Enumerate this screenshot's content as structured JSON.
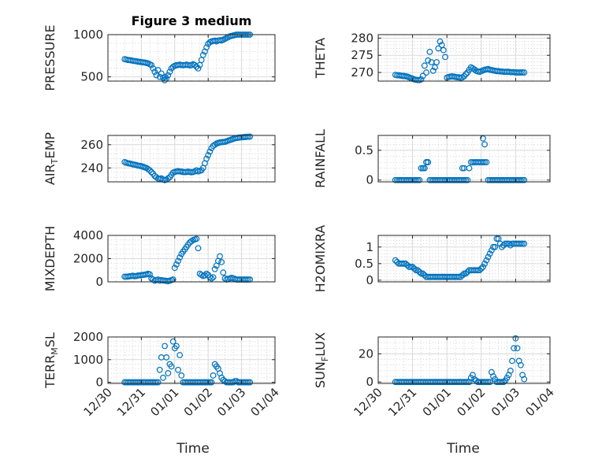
{
  "figure": {
    "title": "Figure 3 medium",
    "background": "#ffffff",
    "axes_color": "#262626",
    "marker_color": "#0072bd"
  },
  "chart_data": [
    {
      "type": "scatter",
      "ylabel": "PRESSURE",
      "title": "Figure 3 medium",
      "xlim": [
        0,
        5
      ],
      "ylim": [
        450,
        1000
      ],
      "yticks": [
        500,
        1000
      ],
      "yticklabels": [
        "500",
        "1000"
      ],
      "x": [
        0.5,
        0.55,
        0.6,
        0.65,
        0.7,
        0.75,
        0.8,
        0.85,
        0.9,
        0.95,
        1.0,
        1.05,
        1.1,
        1.15,
        1.2,
        1.25,
        1.3,
        1.35,
        1.4,
        1.45,
        1.5,
        1.55,
        1.6,
        1.65,
        1.7,
        1.72,
        1.75,
        1.8,
        1.85,
        1.9,
        1.95,
        2.0,
        2.05,
        2.1,
        2.15,
        2.2,
        2.25,
        2.3,
        2.35,
        2.4,
        2.45,
        2.5,
        2.55,
        2.6,
        2.65,
        2.7,
        2.75,
        2.8,
        2.85,
        2.9,
        2.95,
        3.0,
        3.05,
        3.1,
        3.15,
        3.2,
        3.25,
        3.3,
        3.35,
        3.4,
        3.45,
        3.5,
        3.55,
        3.6,
        3.65,
        3.7,
        3.75,
        3.8,
        3.85,
        3.9,
        3.95,
        4.0,
        4.05,
        4.1,
        4.15,
        4.2,
        4.25
      ],
      "y": [
        710,
        705,
        700,
        698,
        695,
        690,
        688,
        685,
        680,
        678,
        675,
        672,
        670,
        665,
        660,
        650,
        640,
        600,
        560,
        520,
        580,
        500,
        540,
        490,
        460,
        500,
        480,
        520,
        560,
        600,
        620,
        630,
        640,
        640,
        645,
        640,
        638,
        640,
        645,
        640,
        635,
        640,
        650,
        640,
        620,
        600,
        640,
        700,
        760,
        800,
        850,
        890,
        910,
        920,
        925,
        930,
        920,
        930,
        935,
        930,
        940,
        950,
        960,
        970,
        980,
        985,
        990,
        995,
        1000,
        1000,
        1000,
        1000,
        1000,
        1000,
        1000,
        1000,
        1000
      ]
    },
    {
      "type": "scatter",
      "ylabel": "THETA",
      "xlim": [
        0,
        5
      ],
      "ylim": [
        267.5,
        281
      ],
      "yticks": [
        270,
        275,
        280
      ],
      "yticklabels": [
        "270",
        "275",
        "280"
      ],
      "x": [
        0.5,
        0.55,
        0.6,
        0.65,
        0.7,
        0.75,
        0.8,
        0.85,
        0.9,
        0.95,
        1.0,
        1.05,
        1.1,
        1.15,
        1.2,
        1.25,
        1.3,
        1.35,
        1.4,
        1.45,
        1.5,
        1.55,
        1.6,
        1.65,
        1.7,
        1.75,
        1.8,
        1.85,
        1.9,
        1.95,
        2.0,
        2.05,
        2.1,
        2.15,
        2.2,
        2.25,
        2.3,
        2.35,
        2.4,
        2.45,
        2.5,
        2.55,
        2.6,
        2.65,
        2.7,
        2.75,
        2.8,
        2.85,
        2.9,
        2.95,
        3.0,
        3.05,
        3.1,
        3.15,
        3.2,
        3.25,
        3.3,
        3.35,
        3.4,
        3.45,
        3.5,
        3.55,
        3.6,
        3.65,
        3.7,
        3.75,
        3.8,
        3.85,
        3.9,
        3.95,
        4.0,
        4.05,
        4.1,
        4.15,
        4.2,
        4.25
      ],
      "y": [
        269.3,
        269.2,
        269.2,
        269.1,
        269.0,
        269.0,
        268.9,
        268.8,
        268.6,
        268.4,
        268.2,
        268.0,
        267.9,
        267.8,
        267.8,
        268.0,
        269.0,
        272.0,
        270.0,
        273.5,
        276.0,
        273.0,
        270.5,
        271.5,
        273.0,
        277.0,
        279.0,
        278.0,
        276.5,
        274.5,
        268.5,
        268.7,
        268.8,
        268.9,
        268.8,
        268.7,
        268.6,
        268.6,
        268.4,
        268.6,
        268.9,
        269.5,
        270.0,
        270.8,
        271.5,
        271.2,
        270.9,
        270.5,
        270.3,
        270.2,
        270.4,
        270.6,
        270.8,
        270.9,
        271.0,
        270.8,
        270.7,
        270.6,
        270.5,
        270.4,
        270.4,
        270.3,
        270.3,
        270.2,
        270.2,
        270.2,
        270.2,
        270.1,
        270.1,
        270.1,
        270.0,
        270.0,
        270.0,
        270.0,
        270.0,
        270.0
      ]
    },
    {
      "type": "scatter",
      "ylabel": "AIR_TEMP",
      "xlim": [
        0,
        5
      ],
      "ylim": [
        228,
        268
      ],
      "yticks": [
        240,
        260
      ],
      "yticklabels": [
        "240",
        "260"
      ],
      "x": [
        0.5,
        0.55,
        0.6,
        0.65,
        0.7,
        0.75,
        0.8,
        0.85,
        0.9,
        0.95,
        1.0,
        1.05,
        1.1,
        1.15,
        1.2,
        1.25,
        1.3,
        1.35,
        1.4,
        1.45,
        1.5,
        1.55,
        1.6,
        1.65,
        1.7,
        1.75,
        1.8,
        1.85,
        1.9,
        1.95,
        2.0,
        2.05,
        2.1,
        2.15,
        2.2,
        2.25,
        2.3,
        2.35,
        2.4,
        2.45,
        2.5,
        2.55,
        2.6,
        2.65,
        2.7,
        2.75,
        2.8,
        2.85,
        2.9,
        2.95,
        3.0,
        3.05,
        3.1,
        3.15,
        3.2,
        3.25,
        3.3,
        3.35,
        3.4,
        3.45,
        3.5,
        3.55,
        3.6,
        3.65,
        3.7,
        3.75,
        3.8,
        3.85,
        3.9,
        3.95,
        4.0,
        4.05,
        4.1,
        4.15,
        4.2,
        4.25
      ],
      "y": [
        245,
        244.5,
        244,
        243.8,
        243.5,
        243,
        242.8,
        242.5,
        242,
        241.8,
        241.5,
        241,
        240.5,
        240,
        239,
        238,
        236.5,
        235,
        233,
        232,
        231,
        230.5,
        231,
        230,
        229.5,
        230,
        231,
        232,
        234,
        236,
        236.5,
        237,
        237.2,
        237,
        236.8,
        236.5,
        236.4,
        236.5,
        236.8,
        236.5,
        236.2,
        236.5,
        237,
        238,
        237,
        237.5,
        238,
        240,
        244,
        248,
        251,
        254,
        257,
        259,
        260,
        261,
        261.5,
        262,
        262.2,
        262.3,
        262.5,
        263,
        263.5,
        264,
        264.5,
        265,
        265.5,
        265.8,
        266,
        266.2,
        266.3,
        266.5,
        266.6,
        266.8,
        266.9,
        267
      ]
    },
    {
      "type": "scatter",
      "ylabel": "RAINFALL",
      "xlim": [
        0,
        5
      ],
      "ylim": [
        -0.03,
        0.75
      ],
      "yticks": [
        0,
        0.5
      ],
      "yticklabels": [
        "0",
        "0.5"
      ],
      "x": [
        0.5,
        0.55,
        0.6,
        0.65,
        0.7,
        0.75,
        0.8,
        0.85,
        0.9,
        0.95,
        1.0,
        1.05,
        1.1,
        1.15,
        1.2,
        1.25,
        1.3,
        1.35,
        1.4,
        1.45,
        1.5,
        1.55,
        1.6,
        1.65,
        1.7,
        1.75,
        1.8,
        1.85,
        1.9,
        1.95,
        2.0,
        2.05,
        2.1,
        2.15,
        2.2,
        2.25,
        2.3,
        2.35,
        2.4,
        2.45,
        2.5,
        2.55,
        2.6,
        2.65,
        2.7,
        2.75,
        2.8,
        2.85,
        2.9,
        2.95,
        3.0,
        3.05,
        3.1,
        3.15,
        3.2,
        3.25,
        3.3,
        3.35,
        3.4,
        3.45,
        3.5,
        3.55,
        3.6,
        3.65,
        3.7,
        3.75,
        3.8,
        3.85,
        3.9,
        3.95,
        4.0,
        4.05,
        4.1,
        4.15,
        4.2,
        4.25,
        1.3,
        1.35,
        1.4,
        1.45,
        2.45,
        2.5,
        3.05,
        3.1
      ],
      "y": [
        0,
        0,
        0,
        0,
        0,
        0,
        0,
        0,
        0,
        0,
        0,
        0,
        0,
        0,
        0,
        0.2,
        0.2,
        0.2,
        0.3,
        0.3,
        0,
        0,
        0,
        0,
        0,
        0,
        0,
        0,
        0,
        0,
        0,
        0,
        0,
        0,
        0,
        0,
        0,
        0,
        0,
        0,
        0,
        0,
        0,
        0.2,
        0.3,
        0.3,
        0.3,
        0.3,
        0.3,
        0.3,
        0.3,
        0.3,
        0.3,
        0.3,
        0,
        0,
        0,
        0,
        0,
        0,
        0,
        0,
        0,
        0,
        0,
        0,
        0,
        0,
        0,
        0,
        0,
        0,
        0,
        0,
        0,
        0,
        0.2,
        0.2,
        0.3,
        0.3,
        0.2,
        0.2,
        0.7,
        0.6
      ]
    },
    {
      "type": "scatter",
      "ylabel": "MIXDEPTH",
      "xlim": [
        0,
        5
      ],
      "ylim": [
        0,
        4000
      ],
      "yticks": [
        0,
        2000,
        4000
      ],
      "yticklabels": [
        "0",
        "2000",
        "4000"
      ],
      "x": [
        0.5,
        0.55,
        0.6,
        0.65,
        0.7,
        0.75,
        0.8,
        0.85,
        0.9,
        0.95,
        1.0,
        1.05,
        1.1,
        1.15,
        1.2,
        1.25,
        1.3,
        1.35,
        1.4,
        1.45,
        1.5,
        1.55,
        1.6,
        1.65,
        1.7,
        1.75,
        1.8,
        1.85,
        1.9,
        1.95,
        2.0,
        2.05,
        2.1,
        2.15,
        2.2,
        2.25,
        2.3,
        2.35,
        2.4,
        2.45,
        2.5,
        2.55,
        2.6,
        2.65,
        2.7,
        2.75,
        2.8,
        2.85,
        2.9,
        2.95,
        3.0,
        3.05,
        3.1,
        3.15,
        3.2,
        3.25,
        3.3,
        3.35,
        3.4,
        3.45,
        3.5,
        3.55,
        3.6,
        3.65,
        3.7,
        3.75,
        3.8,
        3.85,
        3.9,
        3.95,
        4.0,
        4.05,
        4.1,
        4.15,
        4.2,
        4.25
      ],
      "y": [
        450,
        440,
        460,
        480,
        500,
        520,
        480,
        500,
        550,
        560,
        580,
        600,
        620,
        650,
        700,
        650,
        300,
        200,
        100,
        150,
        200,
        100,
        150,
        120,
        100,
        80,
        50,
        100,
        150,
        200,
        1200,
        1500,
        1800,
        2100,
        2400,
        2600,
        2800,
        3000,
        3200,
        3400,
        3500,
        3600,
        3650,
        3700,
        2900,
        700,
        600,
        500,
        550,
        700,
        600,
        400,
        300,
        400,
        1100,
        1400,
        1800,
        2200,
        1700,
        800,
        300,
        200,
        250,
        300,
        350,
        300,
        250,
        200,
        200,
        200,
        200,
        200,
        200,
        200,
        200,
        200
      ]
    },
    {
      "type": "scatter",
      "ylabel": "H2OMIXRA",
      "xlim": [
        0,
        5
      ],
      "ylim": [
        -0.05,
        1.35
      ],
      "yticks": [
        0,
        0.5,
        1
      ],
      "yticklabels": [
        "0",
        "0.5",
        "1"
      ],
      "x": [
        0.5,
        0.55,
        0.6,
        0.65,
        0.7,
        0.75,
        0.8,
        0.85,
        0.9,
        0.95,
        1.0,
        1.05,
        1.1,
        1.15,
        1.2,
        1.25,
        1.3,
        1.35,
        1.4,
        1.45,
        1.5,
        1.55,
        1.6,
        1.65,
        1.7,
        1.75,
        1.8,
        1.85,
        1.9,
        1.95,
        2.0,
        2.05,
        2.1,
        2.15,
        2.2,
        2.25,
        2.3,
        2.35,
        2.4,
        2.45,
        2.5,
        2.55,
        2.6,
        2.65,
        2.7,
        2.75,
        2.8,
        2.85,
        2.9,
        2.95,
        3.0,
        3.05,
        3.1,
        3.15,
        3.2,
        3.25,
        3.3,
        3.35,
        3.4,
        3.45,
        3.5,
        3.55,
        3.6,
        3.65,
        3.7,
        3.75,
        3.8,
        3.85,
        3.9,
        3.95,
        4.0,
        4.05,
        4.1,
        4.15,
        4.2,
        4.25
      ],
      "y": [
        0.6,
        0.55,
        0.5,
        0.5,
        0.5,
        0.5,
        0.5,
        0.45,
        0.4,
        0.4,
        0.4,
        0.35,
        0.3,
        0.3,
        0.25,
        0.2,
        0.2,
        0.15,
        0.1,
        0.1,
        0.1,
        0.1,
        0.1,
        0.1,
        0.1,
        0.1,
        0.1,
        0.1,
        0.1,
        0.1,
        0.1,
        0.1,
        0.1,
        0.1,
        0.1,
        0.1,
        0.1,
        0.1,
        0.1,
        0.15,
        0.2,
        0.2,
        0.25,
        0.3,
        0.3,
        0.3,
        0.3,
        0.3,
        0.3,
        0.3,
        0.35,
        0.4,
        0.5,
        0.6,
        0.7,
        0.8,
        0.9,
        1.0,
        1.0,
        1.25,
        1.25,
        1.1,
        1.0,
        1.05,
        1.1,
        1.1,
        1.1,
        1.05,
        1.1,
        1.1,
        1.1,
        1.1,
        1.1,
        1.1,
        1.1,
        1.1
      ]
    },
    {
      "type": "scatter",
      "ylabel": "TERR_MSL",
      "xlim": [
        0,
        5
      ],
      "ylim": [
        -50,
        2000
      ],
      "yticks": [
        0,
        1000,
        2000
      ],
      "yticklabels": [
        "0",
        "1000",
        "2000"
      ],
      "x": [
        0.5,
        0.55,
        0.6,
        0.65,
        0.7,
        0.75,
        0.8,
        0.85,
        0.9,
        0.95,
        1.0,
        1.05,
        1.1,
        1.15,
        1.2,
        1.25,
        1.3,
        1.35,
        1.4,
        1.45,
        1.5,
        1.55,
        1.6,
        1.65,
        1.7,
        1.75,
        1.8,
        1.85,
        1.9,
        1.95,
        2.0,
        2.05,
        2.1,
        2.15,
        2.2,
        2.25,
        2.3,
        2.35,
        2.4,
        2.45,
        2.5,
        2.55,
        2.6,
        2.65,
        2.7,
        2.75,
        2.8,
        2.85,
        2.9,
        2.95,
        3.0,
        3.05,
        3.1,
        3.15,
        3.2,
        3.25,
        3.3,
        3.35,
        3.4,
        3.45,
        3.5,
        3.55,
        3.6,
        3.65,
        3.7,
        3.75,
        3.8,
        3.85,
        3.9,
        3.95,
        4.0,
        4.05,
        4.1,
        4.15,
        4.2,
        4.25
      ],
      "y": [
        0,
        0,
        0,
        0,
        0,
        0,
        0,
        0,
        0,
        0,
        0,
        0,
        0,
        0,
        0,
        0,
        0,
        0,
        0,
        0,
        0,
        550,
        1100,
        200,
        1600,
        1100,
        400,
        800,
        700,
        1800,
        1500,
        1600,
        550,
        1200,
        300,
        0,
        0,
        0,
        0,
        0,
        0,
        0,
        0,
        0,
        0,
        0,
        0,
        0,
        0,
        0,
        0,
        0,
        0,
        300,
        800,
        700,
        600,
        400,
        200,
        100,
        50,
        0,
        0,
        0,
        0,
        0,
        50,
        50,
        0,
        0,
        0,
        0,
        0,
        0,
        0,
        0
      ]
    },
    {
      "type": "scatter",
      "ylabel": "SUN_FLUX",
      "xlim": [
        0,
        5
      ],
      "ylim": [
        -1,
        32
      ],
      "yticks": [
        0,
        20
      ],
      "yticklabels": [
        "0",
        "20"
      ],
      "x": [
        0.5,
        0.55,
        0.6,
        0.65,
        0.7,
        0.75,
        0.8,
        0.85,
        0.9,
        0.95,
        1.0,
        1.05,
        1.1,
        1.15,
        1.2,
        1.25,
        1.3,
        1.35,
        1.4,
        1.45,
        1.5,
        1.55,
        1.6,
        1.65,
        1.7,
        1.75,
        1.8,
        1.85,
        1.9,
        1.95,
        2.0,
        2.05,
        2.1,
        2.15,
        2.2,
        2.25,
        2.3,
        2.35,
        2.4,
        2.45,
        2.5,
        2.55,
        2.6,
        2.65,
        2.7,
        2.75,
        2.8,
        2.85,
        2.9,
        2.95,
        3.0,
        3.05,
        3.1,
        3.15,
        3.2,
        3.25,
        3.3,
        3.35,
        3.4,
        3.45,
        3.5,
        3.55,
        3.6,
        3.65,
        3.7,
        3.75,
        3.8,
        3.85,
        3.9,
        3.95,
        4.0,
        4.05,
        4.1,
        4.15,
        4.2,
        4.25
      ],
      "y": [
        0,
        0,
        0,
        0,
        0,
        0,
        0,
        0,
        0,
        0,
        0,
        0,
        0,
        0,
        0,
        0,
        0,
        0,
        0,
        0,
        0,
        0,
        0,
        0,
        0,
        0,
        0,
        0,
        0,
        0,
        0,
        0,
        0,
        0,
        0,
        0,
        0,
        0,
        0,
        0,
        0,
        0,
        0,
        0,
        3,
        5,
        2,
        1,
        0,
        0,
        0,
        0,
        0,
        0,
        0,
        0,
        7,
        4,
        2,
        0,
        0,
        0,
        0,
        0,
        1,
        3,
        5,
        8,
        15,
        24,
        31,
        24,
        15,
        12,
        5,
        2
      ]
    }
  ],
  "x_axis": {
    "label": "Time",
    "ticks": [
      0,
      1,
      2,
      3,
      4,
      5
    ],
    "ticklabels": [
      "12/30",
      "12/31",
      "01/01",
      "01/02",
      "01/03",
      "01/04"
    ]
  }
}
